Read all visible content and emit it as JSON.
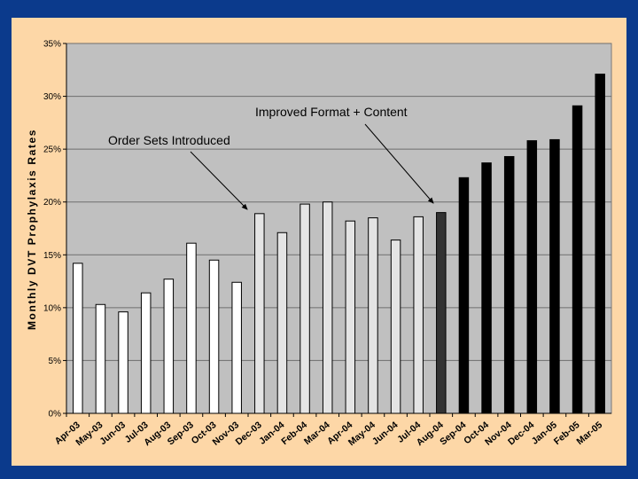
{
  "chart_data": {
    "type": "bar",
    "title": "",
    "xlabel": "",
    "ylabel": "Monthly DVT Prophylaxis Rates",
    "ylim": [
      0,
      35
    ],
    "y_ticks": [
      "0%",
      "5%",
      "10%",
      "15%",
      "20%",
      "25%",
      "30%",
      "35%"
    ],
    "grid": true,
    "categories": [
      "Apr-03",
      "May-03",
      "Jun-03",
      "Jul-03",
      "Aug-03",
      "Sep-03",
      "Oct-03",
      "Nov-03",
      "Dec-03",
      "Jan-04",
      "Feb-04",
      "Mar-04",
      "Apr-04",
      "May-04",
      "Jun-04",
      "Jul-04",
      "Aug-04",
      "Sep-04",
      "Oct-04",
      "Nov-04",
      "Dec-04",
      "Jan-05",
      "Feb-05",
      "Mar-05"
    ],
    "values": [
      14.2,
      10.3,
      9.6,
      11.4,
      12.7,
      16.1,
      14.5,
      12.4,
      18.9,
      17.1,
      19.8,
      20.0,
      18.2,
      18.5,
      16.4,
      18.6,
      19.0,
      22.3,
      23.7,
      24.3,
      25.8,
      25.9,
      29.1,
      32.1
    ],
    "bar_colors": [
      "#ffffff",
      "#ffffff",
      "#ffffff",
      "#ffffff",
      "#ffffff",
      "#ffffff",
      "#ffffff",
      "#ffffff",
      "#e4e4e4",
      "#e4e4e4",
      "#e4e4e4",
      "#e4e4e4",
      "#e4e4e4",
      "#e4e4e4",
      "#e4e4e4",
      "#e4e4e4",
      "#333333",
      "#000000",
      "#000000",
      "#000000",
      "#000000",
      "#000000",
      "#000000",
      "#000000"
    ],
    "annotations": [
      {
        "text": "Order Sets Introduced",
        "points_to": "Dec-03"
      },
      {
        "text": "Improved Format + Content",
        "points_to": "Aug-04"
      }
    ]
  },
  "colors": {
    "slide_background": "#0b3a8c",
    "panel_background": "#fdd7a7",
    "plot_background": "#c0c0c0"
  }
}
